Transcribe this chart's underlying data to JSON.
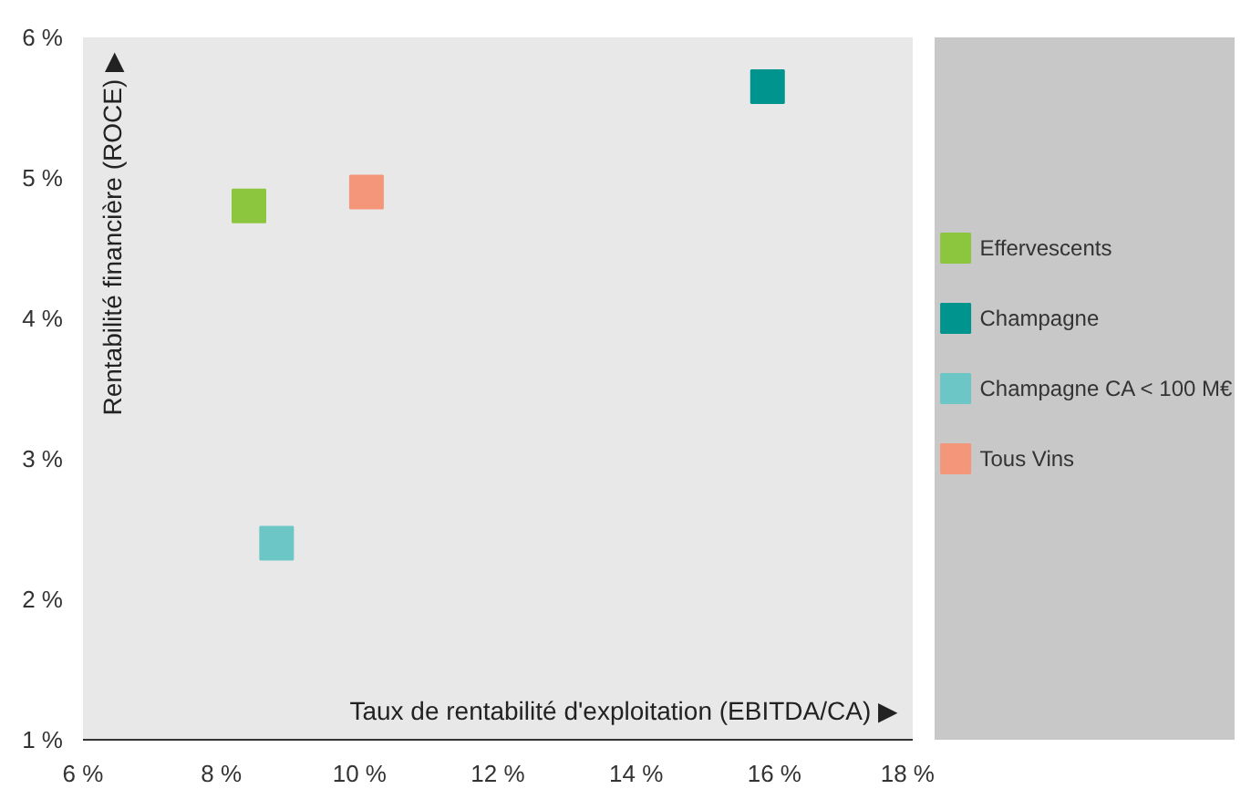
{
  "chart_data": {
    "type": "scatter",
    "xlabel": "Taux de rentabilité d'exploitation (EBITDA/CA) ▶",
    "ylabel": "Rentabilité financière (ROCE) ▶",
    "marker": "square",
    "legend": "right",
    "grid": false,
    "xlim": [
      6,
      18
    ],
    "xticks": [
      {
        "value": 6,
        "label": "6 %"
      },
      {
        "value": 8,
        "label": "8 %"
      },
      {
        "value": 10,
        "label": "10 %"
      },
      {
        "value": 12,
        "label": "12 %"
      },
      {
        "value": 14,
        "label": "14 %"
      },
      {
        "value": 16,
        "label": "16 %"
      },
      {
        "value": 18,
        "label": "18 %"
      }
    ],
    "ylim": [
      1,
      6
    ],
    "yticks": [
      {
        "value": 1,
        "label": "1 %"
      },
      {
        "value": 2,
        "label": "2 %"
      },
      {
        "value": 3,
        "label": "3 %"
      },
      {
        "value": 4,
        "label": "4 %"
      },
      {
        "value": 5,
        "label": "5 %"
      },
      {
        "value": 6,
        "label": "6 %"
      }
    ],
    "series": [
      {
        "name": "Effervescents",
        "color": "#8cc63f",
        "x": [
          8.4
        ],
        "values": [
          4.8
        ]
      },
      {
        "name": "Champagne",
        "color": "#00948f",
        "x": [
          15.9
        ],
        "values": [
          5.65
        ]
      },
      {
        "name": "Champagne CA < 100 M€",
        "color": "#6cc6c6",
        "x": [
          8.8
        ],
        "values": [
          2.4
        ]
      },
      {
        "name": "Tous Vins",
        "color": "#f4967a",
        "x": [
          10.1
        ],
        "values": [
          4.9
        ]
      }
    ]
  }
}
